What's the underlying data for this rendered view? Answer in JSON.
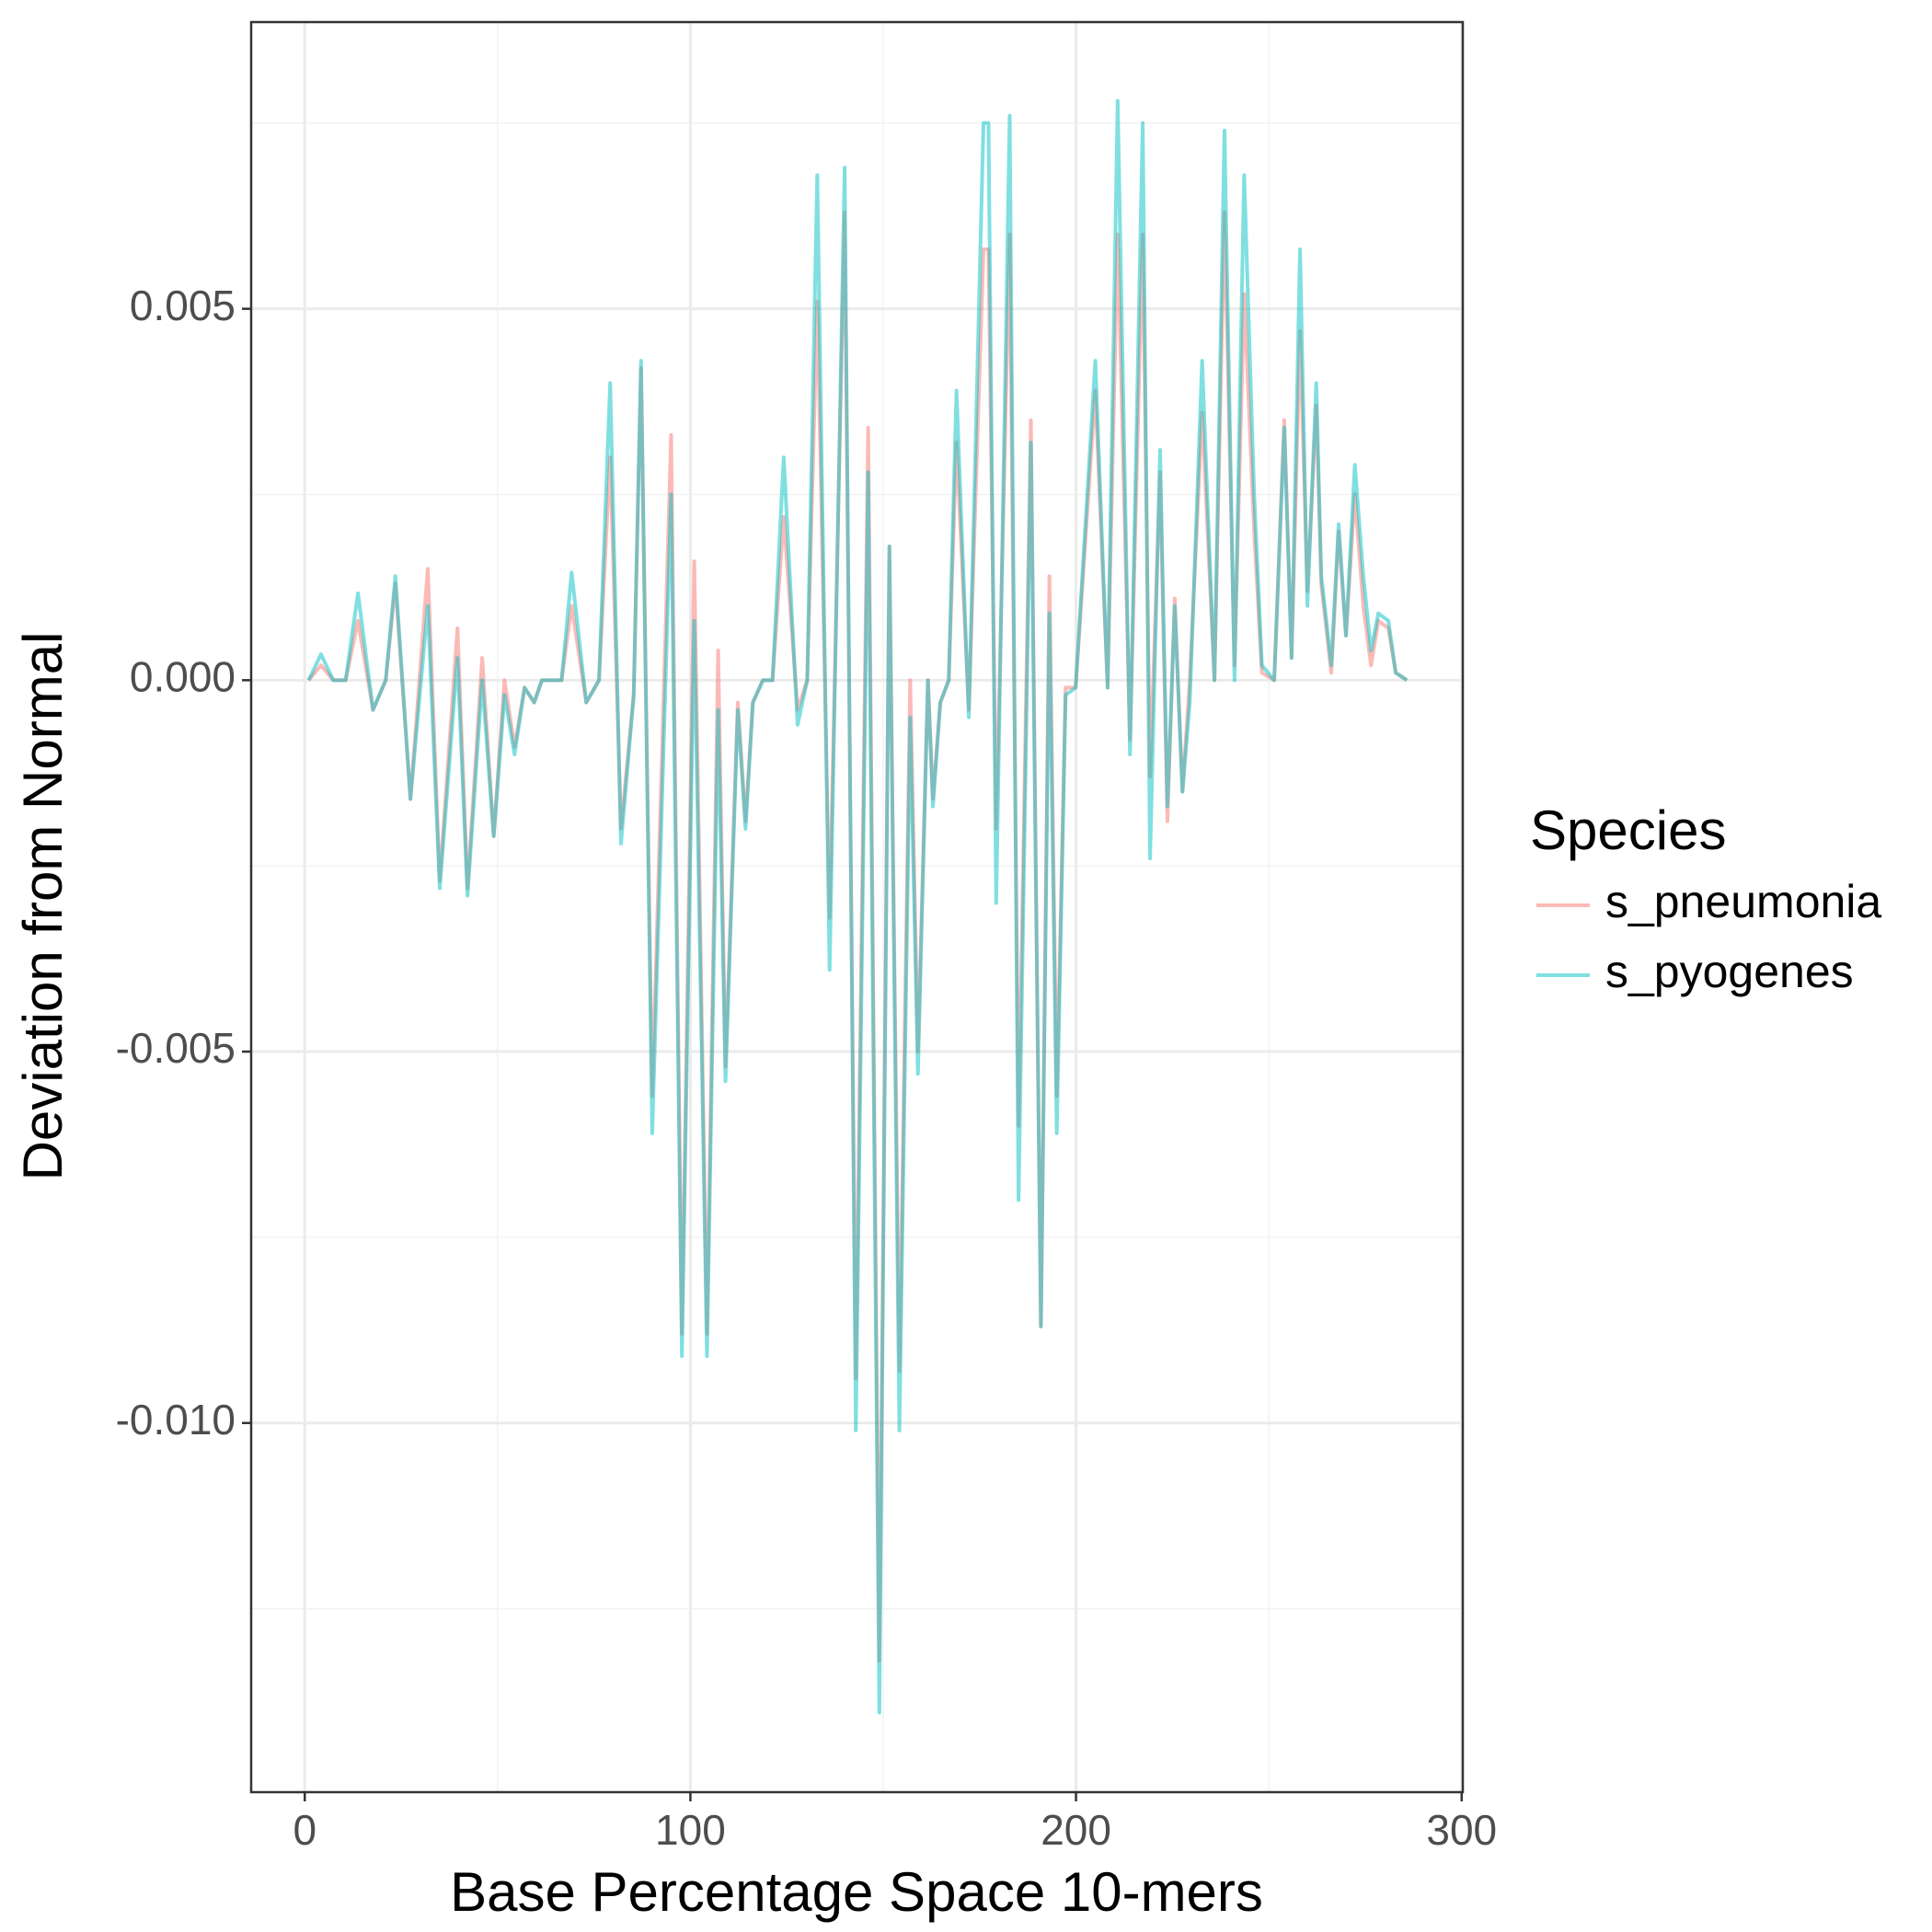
{
  "chart_data": {
    "type": "line",
    "x_label": "Base Percentage Space 10-mers",
    "y_label": "Deviation from Normal",
    "legend_title": "Species",
    "legend_position": "right",
    "grid": true,
    "line_alpha": 0.5,
    "xlim": [
      -13.9,
      300.3
    ],
    "ylim": [
      -0.01497,
      0.00886
    ],
    "xticks": [
      0,
      100,
      200,
      300
    ],
    "yticks": [
      {
        "value": -0.01,
        "label": "-0.010"
      },
      -0.005,
      {
        "value": 0,
        "label": "0.000"
      },
      0.005
    ],
    "xminor": [
      50,
      150,
      250
    ],
    "yminor": [
      -0.0125,
      -0.0075,
      -0.0025,
      0.0025,
      0.0075
    ],
    "x": [
      1,
      4.2,
      7.4,
      10.6,
      13.8,
      17.7,
      21,
      23.5,
      27.4,
      31.9,
      35,
      39.6,
      42.2,
      46,
      49,
      51.8,
      54.4,
      57,
      59.5,
      61.5,
      66.6,
      69.2,
      73,
      76.3,
      79.2,
      82,
      85.3,
      87.2,
      90.1,
      95,
      97.8,
      101,
      104.3,
      107.2,
      109.1,
      112.3,
      114.3,
      116.2,
      118.8,
      121.3,
      124.2,
      127.8,
      130.3,
      132.9,
      136.1,
      140,
      142.9,
      146.1,
      149,
      151.6,
      154.2,
      157,
      159,
      161.6,
      162.9,
      164.8,
      167,
      169,
      172.2,
      176,
      177.3,
      179.3,
      182.8,
      185.1,
      188.3,
      190.9,
      193.1,
      195,
      197.3,
      199.9,
      205,
      208.2,
      210.8,
      214,
      217.3,
      219.2,
      221.8,
      223.7,
      225.6,
      227.6,
      229.5,
      232.7,
      235.9,
      238.5,
      241.1,
      243.6,
      246.2,
      248.2,
      251.4,
      254,
      255.9,
      258.1,
      260,
      262.3,
      263.6,
      266.2,
      268.1,
      270,
      272.3,
      274.5,
      276.5,
      278.4,
      281,
      282.9,
      285.8
    ],
    "series": [
      {
        "name": "s_pneumonia",
        "color": "#F8766D",
        "values": [
          0,
          0.0002,
          0,
          0,
          0.0008,
          -0.0004,
          0,
          0.0013,
          -0.0016,
          0.0015,
          -0.0027,
          0.0007,
          -0.0028,
          0.0003,
          -0.0021,
          0,
          -0.0009,
          -0.0001,
          -0.0003,
          0,
          0,
          0.001,
          -0.0003,
          0,
          0.003,
          -0.002,
          -0.0002,
          0.0042,
          -0.0056,
          0.0033,
          -0.0088,
          0.0016,
          -0.0088,
          0.0004,
          -0.0052,
          -0.0003,
          -0.0019,
          -0.0003,
          0,
          0,
          0.0022,
          -0.0004,
          0,
          0.0051,
          -0.0032,
          0.0063,
          -0.0094,
          0.0034,
          -0.0132,
          0.0018,
          -0.0093,
          0,
          -0.005,
          0,
          -0.0016,
          -0.0003,
          0,
          0.0032,
          -0.0004,
          0.0058,
          0.0058,
          -0.002,
          0.006,
          -0.006,
          0.0035,
          -0.0087,
          0.0014,
          -0.0056,
          -0.0001,
          -0.0001,
          0.0039,
          -0.0001,
          0.006,
          -0.0008,
          0.006,
          -0.0013,
          0.0028,
          -0.0019,
          0.0011,
          -0.0015,
          0,
          0.0036,
          0,
          0.0063,
          0.0002,
          0.0052,
          0.002,
          0.0001,
          0,
          0.0035,
          0.0003,
          0.0047,
          0.0012,
          0.0037,
          0.0013,
          0.0001,
          0.002,
          0.0006,
          0.0025,
          0.001,
          0.0002,
          0.0008,
          0.0007,
          0.0001,
          0
        ]
      },
      {
        "name": "s_pyogenes",
        "color": "#00BFC4",
        "values": [
          0,
          0.00035,
          0,
          0,
          0.00117,
          -0.0004,
          0,
          0.0014,
          -0.0016,
          0.001,
          -0.0028,
          0.0003,
          -0.0029,
          0,
          -0.0021,
          -0.0002,
          -0.001,
          -0.0001,
          -0.0003,
          0,
          0,
          0.00145,
          -0.0003,
          0,
          0.004,
          -0.0022,
          -0.0002,
          0.0043,
          -0.0061,
          0.0025,
          -0.0091,
          0.0008,
          -0.0091,
          -0.0004,
          -0.0054,
          -0.0004,
          -0.002,
          -0.0003,
          0,
          0,
          0.003,
          -0.0006,
          0,
          0.0068,
          -0.0039,
          0.0069,
          -0.0101,
          0.0028,
          -0.0139,
          0.0018,
          -0.0101,
          -0.0005,
          -0.0053,
          0,
          -0.0017,
          -0.0003,
          0,
          0.0039,
          -0.0005,
          0.0075,
          0.0075,
          -0.003,
          0.0076,
          -0.007,
          0.0032,
          -0.0087,
          0.0009,
          -0.0061,
          -0.0002,
          -0.0001,
          0.0043,
          -0.0001,
          0.0078,
          -0.001,
          0.0075,
          -0.0024,
          0.0031,
          -0.0017,
          0.001,
          -0.0015,
          -0.0003,
          0.0043,
          0,
          0.0074,
          0,
          0.0068,
          0.0025,
          0.0002,
          0,
          0.0034,
          0.0003,
          0.0058,
          0.001,
          0.004,
          0.0014,
          0.0002,
          0.0021,
          0.0006,
          0.0029,
          0.0014,
          0.0004,
          0.0009,
          0.0008,
          0.0001,
          0
        ]
      }
    ]
  }
}
